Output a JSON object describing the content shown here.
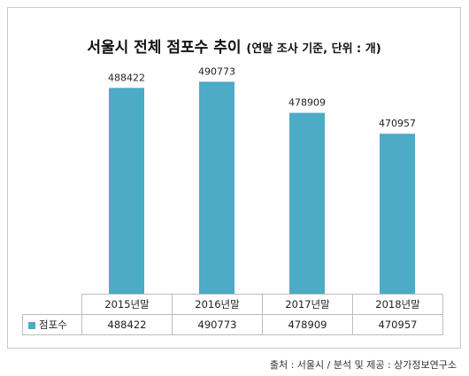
{
  "title": {
    "main": "서울시 전체 점포수 추이",
    "sub": "(연말 조사 기준, 단위 : 개)"
  },
  "colors": {
    "bar": "#4cabc6"
  },
  "chart_data": {
    "type": "bar",
    "categories": [
      "2015년말",
      "2016년말",
      "2017년말",
      "2018년말"
    ],
    "series": [
      {
        "name": "점포수",
        "values": [
          488422,
          490773,
          478909,
          470957
        ]
      }
    ],
    "ylim": [
      410000,
      500000
    ],
    "grid": false,
    "legend": "in-table"
  },
  "table": {
    "row_label": "점포수",
    "values": [
      "488422",
      "490773",
      "478909",
      "470957"
    ]
  },
  "source": "출처 : 서울시 / 분석 및 제공 : 상가정보연구소"
}
